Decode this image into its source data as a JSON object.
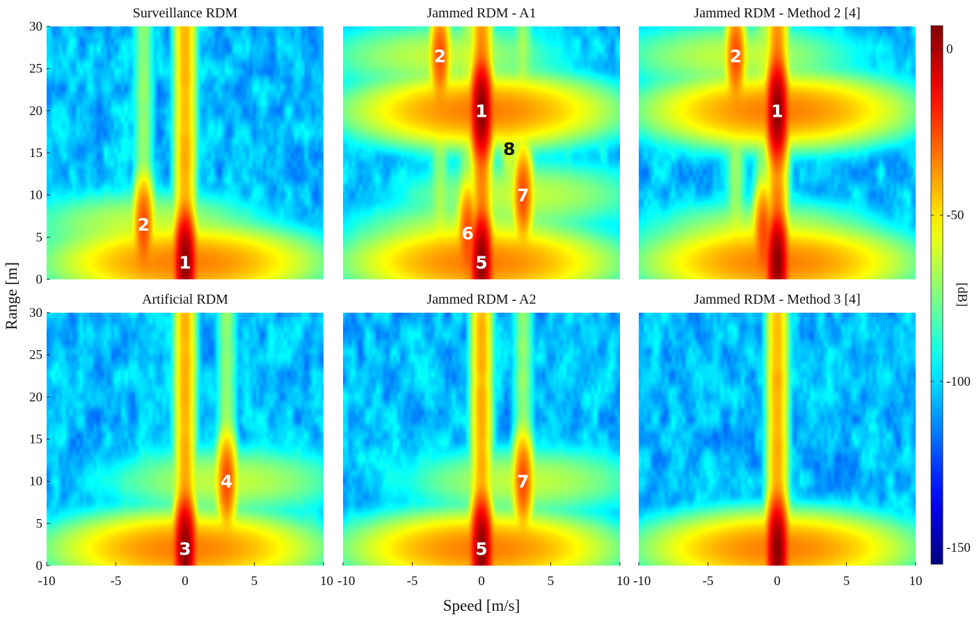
{
  "chart_data": {
    "type": "heatmap",
    "shared": {
      "xlabel": "Speed [m/s]",
      "ylabel": "Range [m]",
      "xlim": [
        -10,
        10
      ],
      "ylim": [
        0,
        30
      ],
      "xticks": [
        -10,
        -5,
        0,
        5,
        10
      ],
      "yticks": [
        0,
        5,
        10,
        15,
        20,
        25,
        30
      ],
      "colorbar": {
        "label": "[dB]",
        "range": [
          -155,
          7
        ],
        "ticks": [
          0,
          -50,
          -100,
          -150
        ],
        "colormap": "jet",
        "noise_floor_db": -105
      }
    },
    "panels": [
      {
        "title": "Surveillance RDM",
        "targets": [
          {
            "label": "1",
            "speed": 0,
            "range": 2,
            "peak_db": 5
          },
          {
            "label": "2",
            "speed": -3,
            "range": 6.5,
            "peak_db": -25
          }
        ]
      },
      {
        "title": "Jammed RDM - A1",
        "targets": [
          {
            "label": "1",
            "speed": 0,
            "range": 20,
            "peak_db": 5
          },
          {
            "label": "2",
            "speed": -3,
            "range": 26.5,
            "peak_db": -25
          },
          {
            "label": "5",
            "speed": 0,
            "range": 2,
            "peak_db": 5
          },
          {
            "label": "6",
            "speed": -1,
            "range": 5.5,
            "peak_db": -25
          },
          {
            "label": "7",
            "speed": 3,
            "range": 10,
            "peak_db": -25
          },
          {
            "label": "8",
            "speed": 2,
            "range": 15.5,
            "peak_db": -60
          }
        ]
      },
      {
        "title": "Jammed RDM - Method 2 [4]",
        "targets": [
          {
            "label": "1",
            "speed": 0,
            "range": 20,
            "peak_db": 5
          },
          {
            "label": "2",
            "speed": -3,
            "range": 26.5,
            "peak_db": -25
          },
          {
            "label": "",
            "speed": 0,
            "range": 2,
            "peak_db": 5
          },
          {
            "label": "",
            "speed": -1,
            "range": 5.5,
            "peak_db": -25
          }
        ]
      },
      {
        "title": "Artificial RDM",
        "targets": [
          {
            "label": "3",
            "speed": 0,
            "range": 2,
            "peak_db": 5
          },
          {
            "label": "4",
            "speed": 3,
            "range": 10,
            "peak_db": -25
          }
        ]
      },
      {
        "title": "Jammed RDM - A2",
        "targets": [
          {
            "label": "5",
            "speed": 0,
            "range": 2,
            "peak_db": 5
          },
          {
            "label": "7",
            "speed": 3,
            "range": 10,
            "peak_db": -25
          }
        ]
      },
      {
        "title": "Jammed RDM - Method 3 [4]",
        "targets": [
          {
            "label": "",
            "speed": 0,
            "range": 2,
            "peak_db": 5
          }
        ]
      }
    ]
  }
}
